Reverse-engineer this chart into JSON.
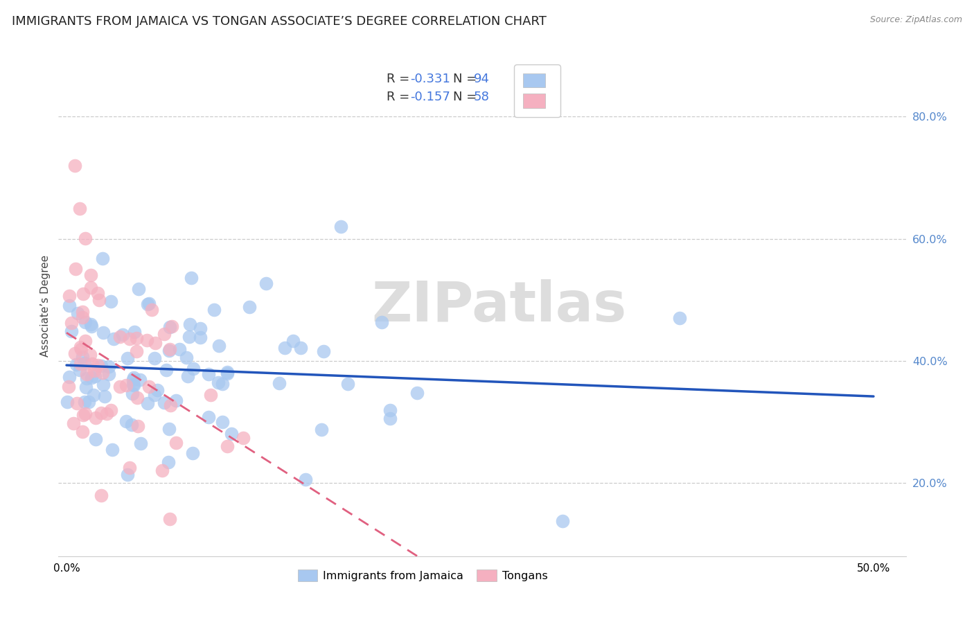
{
  "title": "IMMIGRANTS FROM JAMAICA VS TONGAN ASSOCIATE’S DEGREE CORRELATION CHART",
  "source": "Source: ZipAtlas.com",
  "ylabel": "Associate’s Degree",
  "ytick_labels": [
    "20.0%",
    "40.0%",
    "60.0%",
    "80.0%"
  ],
  "ytick_values": [
    0.2,
    0.4,
    0.6,
    0.8
  ],
  "xtick_labels": [
    "0.0%",
    "50.0%"
  ],
  "xtick_values": [
    0.0,
    0.5
  ],
  "xlim": [
    -0.005,
    0.52
  ],
  "ylim": [
    0.08,
    0.9
  ],
  "jamaica_color": "#A8C8F0",
  "tongan_color": "#F5B0C0",
  "jamaica_line_color": "#2255BB",
  "tongan_line_color": "#E06080",
  "jamaica_R": -0.331,
  "jamaica_N": 94,
  "tongan_R": -0.157,
  "tongan_N": 58,
  "legend_jamaica_R": "-0.331",
  "legend_jamaica_N": "94",
  "legend_tongan_R": "-0.157",
  "legend_tongan_N": "58",
  "watermark_text": "ZIPatlas",
  "background_color": "#ffffff",
  "grid_color": "#cccccc",
  "title_fontsize": 13,
  "axis_label_fontsize": 11,
  "tick_color": "#5588CC",
  "legend_text_color": "#333333",
  "legend_value_color": "#4477DD",
  "seed": 12345
}
